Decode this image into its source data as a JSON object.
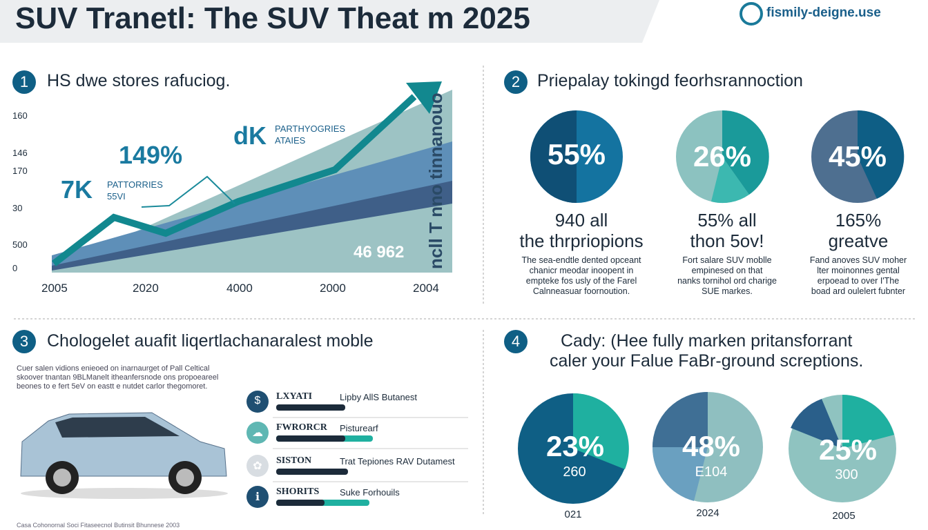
{
  "header": {
    "title": "SUV Tranetl: The SUV Theat m 2025",
    "logo": "fismily-deigne.use"
  },
  "section1": {
    "number": "1",
    "title": "HS dwe stores rafuciog.",
    "y_labels": [
      "160",
      "146",
      "170",
      "30",
      "500",
      "0"
    ],
    "x_labels": [
      "2005",
      "2020",
      "4000",
      "2000",
      "2004"
    ],
    "annotations": {
      "big1": "149%",
      "small1": "?",
      "big2": "7K",
      "note2a": "PATTORRIES",
      "note2b": "55VI",
      "big3": "dK",
      "note3a": "PARTHYOGRIES",
      "note3b": "ATAIES",
      "corner": "46 962",
      "vertical": "ncll T nno tinnanouo"
    }
  },
  "section2": {
    "number": "2",
    "title": "Priepalay tokingd feorhsrannoction",
    "stats": [
      {
        "pie": "55%",
        "headline1": "940 all",
        "headline2": "the thrpriopions",
        "text": [
          "The sea-endtle dented opceant",
          "chanicr meodar inoopent in",
          "empteke fos usly of the Farel",
          "Calnneasuar foornoution."
        ]
      },
      {
        "pie": "26%",
        "headline1": "55% all",
        "headline2": "thon 5ov!",
        "text": [
          "Fort salare SUV moblle",
          "empinesed on that",
          "nanks tornihol ord charige",
          "SUE markes."
        ]
      },
      {
        "pie": "45%",
        "headline1": "165%",
        "headline2": "greatve",
        "text": [
          "Fand anoves SUV moher",
          "lter moinonnes gental",
          "erpoead to over I'The",
          "boad ard oulelert fubnter"
        ]
      }
    ]
  },
  "section3": {
    "number": "3",
    "title": "Chologelet auafit liqertlachanaralest moble",
    "paragraph": [
      "Cuer salen vidions enieoed on inarnaurget of Pall Celtical",
      "skoover tnantan 9BLManelt itheanfersnode ons propoeareel",
      "beones to e fert 5eV on eastt e nutdet carlor thegomoret."
    ],
    "items": [
      {
        "icon": "$",
        "label": "LXYATI",
        "text": "Lipby AllS Butanest"
      },
      {
        "icon": "☁",
        "label": "FWRORCR",
        "text": "Pisturearf"
      },
      {
        "icon": "✿",
        "label": "SISTON",
        "text": "Trat Tepiones RAV Dutamest"
      },
      {
        "icon": "ℹ",
        "label": "SHORITS",
        "text": "Suke Forhouils"
      }
    ],
    "footer": "Casa Cohonornal Soci Fitaseecnol Butinsit Bhunnese 2003"
  },
  "section4": {
    "number": "4",
    "title1": "Cady: (Hee fully marken pritansforrant",
    "title2": "caler your Falue FaBr-ground screptions.",
    "pies": [
      {
        "pct": "23%",
        "sub": "260",
        "year": "021"
      },
      {
        "pct": "48%",
        "sub": "E104",
        "year": "2024"
      },
      {
        "pct": "25%",
        "sub": "300",
        "year": "2005"
      }
    ]
  }
}
